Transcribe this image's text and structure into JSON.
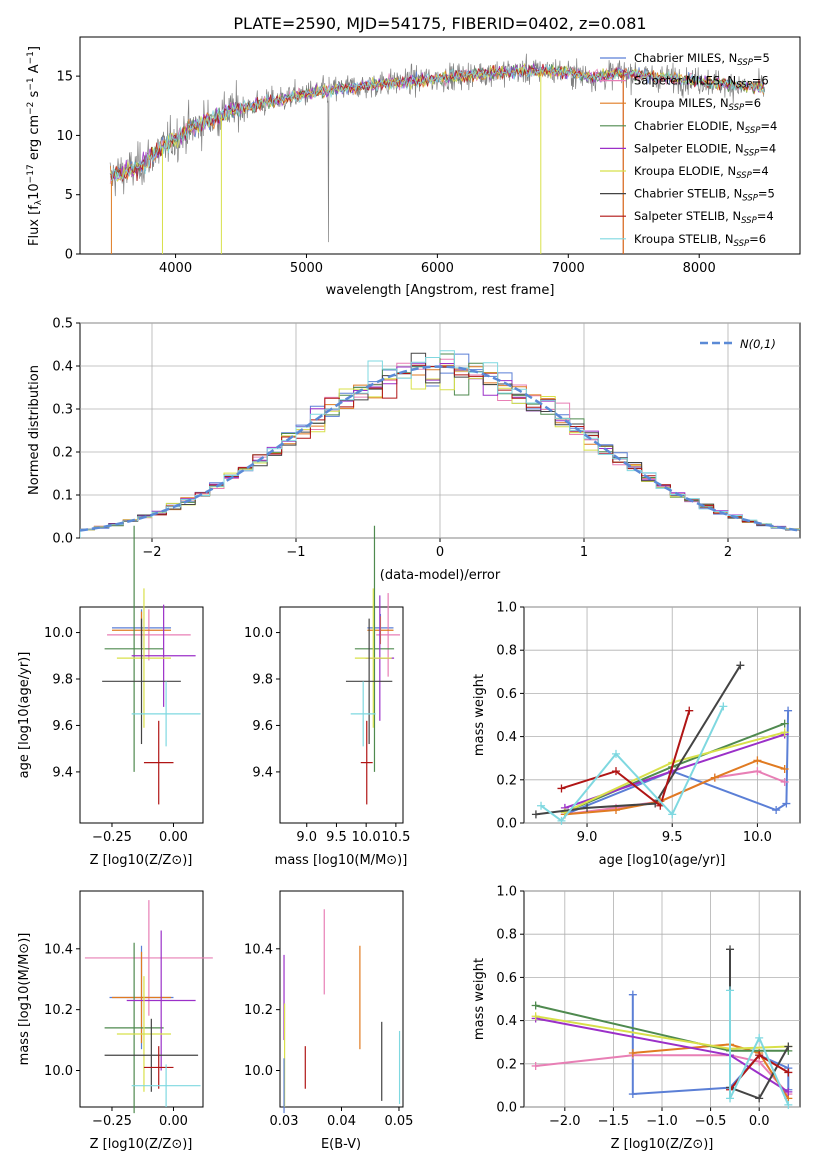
{
  "figure_title": "PLATE=2590, MJD=54175, FIBERID=0402, z=0.081",
  "series": [
    {
      "name": "Chabrier MILES, N_SSP=5",
      "name_main": "Chabrier MILES, N",
      "name_sub": "SSP",
      "name_tail": "=5",
      "color": "#5b7fd6"
    },
    {
      "name": "Salpeter MILES, N_SSP=6",
      "name_main": "Salpeter MILES, N",
      "name_sub": "SSP",
      "name_tail": "=6",
      "color": "#e87fb5"
    },
    {
      "name": "Kroupa MILES, N_SSP=6",
      "name_main": "Kroupa MILES, N",
      "name_sub": "SSP",
      "name_tail": "=6",
      "color": "#e07b22"
    },
    {
      "name": "Chabrier ELODIE, N_SSP=4",
      "name_main": "Chabrier ELODIE, N",
      "name_sub": "SSP",
      "name_tail": "=4",
      "color": "#4f8a4f"
    },
    {
      "name": "Salpeter ELODIE, N_SSP=4",
      "name_main": "Salpeter ELODIE, N",
      "name_sub": "SSP",
      "name_tail": "=4",
      "color": "#9b30c8"
    },
    {
      "name": "Kroupa ELODIE, N_SSP=4",
      "name_main": "Kroupa ELODIE, N",
      "name_sub": "SSP",
      "name_tail": "=4",
      "color": "#d8e04a"
    },
    {
      "name": "Chabrier STELIB, N_SSP=5",
      "name_main": "Chabrier STELIB, N",
      "name_sub": "SSP",
      "name_tail": "=5",
      "color": "#444444"
    },
    {
      "name": "Salpeter STELIB, N_SSP=4",
      "name_main": "Salpeter STELIB, N",
      "name_sub": "SSP",
      "name_tail": "=4",
      "color": "#b01515"
    },
    {
      "name": "Kroupa STELIB, N_SSP=6",
      "name_main": "Kroupa STELIB, N",
      "name_sub": "SSP",
      "name_tail": "=6",
      "color": "#7fd8e0"
    }
  ],
  "chart_data": [
    {
      "id": "spectrum",
      "type": "line",
      "xlabel": "wavelength [Angstrom, rest frame]",
      "ylabel": "Flux [f_λ 10^-17 erg cm^-2 s^-1 A^-1]",
      "ylabel_parts": {
        "a": "Flux [f",
        "b": "λ",
        "c": "10",
        "d": "−17",
        "e": " erg cm",
        "f": "−2",
        "g": " s",
        "h": "−1",
        "i": " A",
        "j": "−1",
        "k": "]"
      },
      "xlim": [
        3270,
        8770
      ],
      "ylim": [
        0,
        18.3
      ],
      "xticks": [
        4000,
        5000,
        6000,
        7000,
        8000
      ],
      "yticks": [
        0,
        5,
        10,
        15
      ],
      "legend_position": "right",
      "continuum": [
        [
          3500,
          6.5
        ],
        [
          3700,
          7.2
        ],
        [
          3900,
          9.0
        ],
        [
          4100,
          10.5
        ],
        [
          4400,
          12.0
        ],
        [
          4700,
          12.8
        ],
        [
          5000,
          13.5
        ],
        [
          5300,
          14.0
        ],
        [
          5600,
          14.4
        ],
        [
          6000,
          14.8
        ],
        [
          6400,
          15.3
        ],
        [
          6800,
          15.5
        ],
        [
          7000,
          15.3
        ],
        [
          7200,
          14.9
        ],
        [
          7400,
          15.3
        ],
        [
          7700,
          14.9
        ],
        [
          8000,
          14.6
        ],
        [
          8300,
          14.2
        ],
        [
          8500,
          14.0
        ]
      ]
    },
    {
      "id": "residual_hist",
      "type": "bar",
      "xlabel": "(data-model)/error",
      "ylabel": "Normed distribution",
      "xlim": [
        -2.5,
        2.5
      ],
      "ylim": [
        0,
        0.5
      ],
      "xticks": [
        -2,
        -1,
        0,
        1,
        2
      ],
      "yticks": [
        0.0,
        0.1,
        0.2,
        0.3,
        0.4,
        0.5
      ],
      "bin_width": 0.1,
      "legend_label": "N(0,1)",
      "grid": true
    },
    {
      "id": "age_vs_Z",
      "type": "scatter",
      "xlabel": "Z [log10(Z/Z⊙)]",
      "ylabel": "age [log10(age/yr)]",
      "xlim": [
        -0.38,
        0.12
      ],
      "ylim": [
        9.18,
        10.11
      ],
      "xticks": [
        -0.25,
        0.0
      ],
      "yticks": [
        9.4,
        9.6,
        9.8,
        10.0
      ],
      "points": [
        {
          "x": -0.13,
          "y": 10.02,
          "xerr": 0.12,
          "yerr": 0.08,
          "series": 0
        },
        {
          "x": -0.1,
          "y": 9.99,
          "xerr": 0.17,
          "yerr": 0.11,
          "series": 1
        },
        {
          "x": -0.13,
          "y": 10.01,
          "xerr": 0.12,
          "yerr": 0.08,
          "series": 2
        },
        {
          "x": -0.16,
          "y": 9.93,
          "xerr": 0.12,
          "yerr": 0.53,
          "series": 3
        },
        {
          "x": -0.04,
          "y": 9.9,
          "xerr": 0.13,
          "yerr": 0.22,
          "series": 4
        },
        {
          "x": -0.12,
          "y": 9.89,
          "xerr": 0.11,
          "yerr": 0.3,
          "series": 5
        },
        {
          "x": -0.13,
          "y": 9.79,
          "xerr": 0.16,
          "yerr": 0.27,
          "series": 6
        },
        {
          "x": -0.06,
          "y": 9.44,
          "xerr": 0.06,
          "yerr": 0.18,
          "series": 7
        },
        {
          "x": -0.03,
          "y": 9.65,
          "xerr": 0.14,
          "yerr": 0.14,
          "series": 8
        }
      ]
    },
    {
      "id": "age_vs_mass",
      "type": "scatter",
      "xlabel": "mass [log10(M/M⊙)]",
      "ylabel": "",
      "xlim": [
        8.55,
        10.62
      ],
      "ylim": [
        9.18,
        10.11
      ],
      "xticks": [
        9.0,
        9.5,
        10.0,
        10.5
      ],
      "yticks": [
        9.4,
        9.6,
        9.8,
        10.0
      ],
      "points": [
        {
          "x": 10.24,
          "y": 10.02,
          "xerr": 0.22,
          "yerr": 0.06,
          "series": 0
        },
        {
          "x": 10.37,
          "y": 9.99,
          "xerr": 0.2,
          "yerr": 0.18,
          "series": 1
        },
        {
          "x": 10.24,
          "y": 10.01,
          "xerr": 0.22,
          "yerr": 0.06,
          "series": 2
        },
        {
          "x": 10.14,
          "y": 9.93,
          "xerr": 0.33,
          "yerr": 0.53,
          "series": 3
        },
        {
          "x": 10.23,
          "y": 9.89,
          "xerr": 0.24,
          "yerr": 0.27,
          "series": 4
        },
        {
          "x": 10.12,
          "y": 9.89,
          "xerr": 0.31,
          "yerr": 0.3,
          "series": 5
        },
        {
          "x": 10.05,
          "y": 9.79,
          "xerr": 0.39,
          "yerr": 0.27,
          "series": 6
        },
        {
          "x": 10.01,
          "y": 9.44,
          "xerr": 0.1,
          "yerr": 0.18,
          "series": 7
        },
        {
          "x": 9.95,
          "y": 9.65,
          "xerr": 0.21,
          "yerr": 0.14,
          "series": 8
        }
      ]
    },
    {
      "id": "weight_vs_age",
      "type": "line",
      "xlabel": "age [log10(age/yr)]",
      "ylabel": "mass weight",
      "xlim": [
        8.63,
        10.25
      ],
      "ylim": [
        0,
        1.0
      ],
      "xticks": [
        9.0,
        9.5,
        10.0
      ],
      "yticks": [
        0.0,
        0.2,
        0.4,
        0.6,
        0.8,
        1.0
      ],
      "grid": true,
      "series_points": [
        {
          "series": 0,
          "x": [
            8.87,
            9.5,
            10.11,
            10.17,
            10.18
          ],
          "y": [
            0.04,
            0.24,
            0.06,
            0.09,
            0.52
          ]
        },
        {
          "series": 1,
          "x": [
            8.87,
            9.17,
            9.43,
            9.75,
            10.0,
            10.16
          ],
          "y": [
            0.04,
            0.07,
            0.1,
            0.21,
            0.24,
            0.19
          ]
        },
        {
          "series": 2,
          "x": [
            8.87,
            9.17,
            9.43,
            9.75,
            10.0,
            10.16
          ],
          "y": [
            0.04,
            0.06,
            0.1,
            0.21,
            0.29,
            0.25
          ]
        },
        {
          "series": 3,
          "x": [
            8.87,
            9.5,
            10.16
          ],
          "y": [
            0.05,
            0.26,
            0.46
          ]
        },
        {
          "series": 4,
          "x": [
            8.87,
            9.5,
            10.16
          ],
          "y": [
            0.07,
            0.24,
            0.41
          ]
        },
        {
          "series": 5,
          "x": [
            8.87,
            9.5,
            10.16
          ],
          "y": [
            0.05,
            0.28,
            0.42
          ]
        },
        {
          "series": 6,
          "x": [
            8.7,
            9.0,
            9.4,
            9.9
          ],
          "y": [
            0.04,
            0.07,
            0.09,
            0.73
          ]
        },
        {
          "series": 7,
          "x": [
            8.85,
            9.17,
            9.43,
            9.6
          ],
          "y": [
            0.16,
            0.24,
            0.08,
            0.52
          ]
        },
        {
          "series": 8,
          "x": [
            8.73,
            8.85,
            9.17,
            9.5,
            9.8
          ],
          "y": [
            0.08,
            0.01,
            0.32,
            0.04,
            0.54
          ]
        }
      ]
    },
    {
      "id": "mass_vs_Z",
      "type": "scatter",
      "xlabel": "Z [log10(Z/Z⊙)]",
      "ylabel": "mass [log10(M/M⊙)]",
      "xlim": [
        -0.38,
        0.12
      ],
      "ylim": [
        9.88,
        10.59
      ],
      "xticks": [
        -0.25,
        0.0
      ],
      "yticks": [
        10.0,
        10.2,
        10.4
      ],
      "points": [
        {
          "x": -0.13,
          "y": 10.24,
          "xerr": 0.13,
          "yerr": 0.17,
          "series": 0
        },
        {
          "x": -0.1,
          "y": 10.37,
          "xerr": 0.26,
          "yerr": 0.19,
          "series": 1
        },
        {
          "x": -0.13,
          "y": 10.24,
          "xerr": 0.12,
          "yerr": 0.15,
          "series": 2
        },
        {
          "x": -0.16,
          "y": 10.14,
          "xerr": 0.12,
          "yerr": 0.28,
          "series": 3
        },
        {
          "x": -0.05,
          "y": 10.23,
          "xerr": 0.14,
          "yerr": 0.23,
          "series": 4
        },
        {
          "x": -0.12,
          "y": 10.12,
          "xerr": 0.11,
          "yerr": 0.19,
          "series": 5
        },
        {
          "x": -0.09,
          "y": 10.05,
          "xerr": 0.19,
          "yerr": 0.12,
          "series": 6
        },
        {
          "x": -0.06,
          "y": 10.01,
          "xerr": 0.06,
          "yerr": 0.07,
          "series": 7
        },
        {
          "x": -0.03,
          "y": 9.95,
          "xerr": 0.14,
          "yerr": 0.07,
          "series": 8
        }
      ]
    },
    {
      "id": "mass_vs_ebv",
      "type": "scatter",
      "xlabel": "E(B-V)",
      "ylabel": "",
      "xlim": [
        0.0293,
        0.0507
      ],
      "ylim": [
        9.88,
        10.59
      ],
      "xticks": [
        0.03,
        0.04,
        0.05
      ],
      "yticks": [
        10.0,
        10.2,
        10.4
      ],
      "points": [
        {
          "x": 0.03,
          "y": 10.24,
          "yerr": 0.14,
          "series": 4
        },
        {
          "x": 0.0301,
          "y": 10.05,
          "yerr": 0.17,
          "series": 5
        },
        {
          "x": 0.03,
          "y": 9.95,
          "yerr": 0.09,
          "series": 0
        },
        {
          "x": 0.0337,
          "y": 10.01,
          "yerr": 0.07,
          "series": 7
        },
        {
          "x": 0.037,
          "y": 10.39,
          "yerr": 0.14,
          "series": 1
        },
        {
          "x": 0.0432,
          "y": 10.24,
          "yerr": 0.17,
          "series": 2
        },
        {
          "x": 0.047,
          "y": 10.03,
          "yerr": 0.13,
          "series": 6
        },
        {
          "x": 0.0501,
          "y": 10.01,
          "yerr": 0.12,
          "series": 8
        }
      ]
    },
    {
      "id": "weight_vs_Z",
      "type": "line",
      "xlabel": "Z [log10(Z/Z⊙)]",
      "ylabel": "mass weight",
      "xlim": [
        -2.42,
        0.42
      ],
      "ylim": [
        0,
        1.0
      ],
      "xticks": [
        -2.0,
        -1.5,
        -1.0,
        -0.5,
        0.0
      ],
      "yticks": [
        0.0,
        0.2,
        0.4,
        0.6,
        0.8,
        1.0
      ],
      "grid": true,
      "series_points": [
        {
          "series": 0,
          "x": [
            -1.3,
            -1.3,
            -0.3,
            0.0,
            0.3,
            0.3
          ],
          "y": [
            0.52,
            0.06,
            0.09,
            0.24,
            0.18,
            0.08
          ]
        },
        {
          "series": 1,
          "x": [
            -2.3,
            -1.3,
            -0.3,
            0.0,
            0.3
          ],
          "y": [
            0.19,
            0.24,
            0.24,
            0.21,
            0.06
          ]
        },
        {
          "series": 2,
          "x": [
            -1.3,
            -0.3,
            0.0,
            0.3
          ],
          "y": [
            0.25,
            0.29,
            0.25,
            0.04
          ]
        },
        {
          "series": 3,
          "x": [
            -2.3,
            -0.3,
            0.3
          ],
          "y": [
            0.47,
            0.26,
            0.26
          ]
        },
        {
          "series": 4,
          "x": [
            -2.3,
            -0.3,
            0.3
          ],
          "y": [
            0.41,
            0.24,
            0.07
          ]
        },
        {
          "series": 5,
          "x": [
            -2.3,
            -0.3,
            0.3
          ],
          "y": [
            0.42,
            0.27,
            0.28
          ]
        },
        {
          "series": 6,
          "x": [
            -0.3,
            -0.3,
            0.0,
            0.3
          ],
          "y": [
            0.73,
            0.09,
            0.04,
            0.28
          ]
        },
        {
          "series": 7,
          "x": [
            -0.3,
            0.0,
            0.3
          ],
          "y": [
            0.08,
            0.24,
            0.16
          ]
        },
        {
          "series": 8,
          "x": [
            -0.3,
            -0.3,
            0.0,
            0.3
          ],
          "y": [
            0.54,
            0.04,
            0.32,
            0.01
          ]
        }
      ]
    }
  ]
}
